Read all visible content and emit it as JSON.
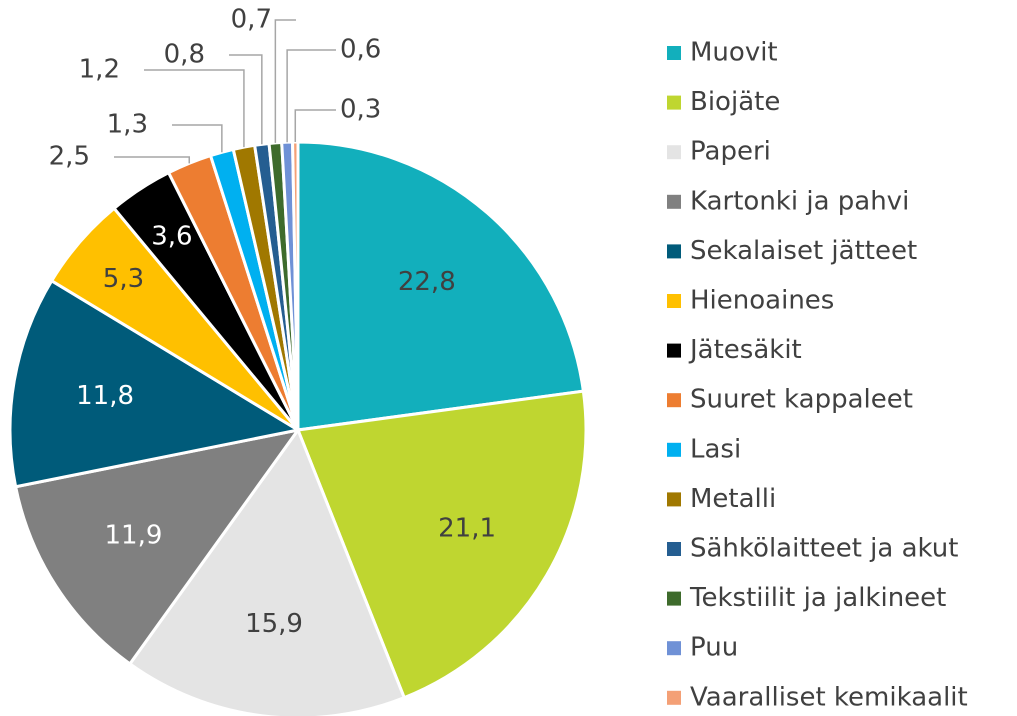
{
  "chart_data": {
    "type": "pie",
    "categories": [
      "Muovit",
      "Biojäte",
      "Paperi",
      "Kartonki ja pahvi",
      "Sekalaiset jätteet",
      "Hienoaines",
      "Jätesäkit",
      "Suuret kappaleet",
      "Lasi",
      "Metalli",
      "Sähkölaitteet ja akut",
      "Tekstiilit ja jalkineet",
      "Puu",
      "Vaaralliset kemikaalit"
    ],
    "values": [
      22.8,
      21.1,
      15.9,
      11.9,
      11.8,
      5.3,
      3.6,
      2.5,
      1.3,
      1.2,
      0.8,
      0.7,
      0.6,
      0.3
    ],
    "value_labels": [
      "22,8",
      "21,1",
      "15,9",
      "11,9",
      "11,8",
      "5,3",
      "3,6",
      "2,5",
      "1,3",
      "1,2",
      "0,8",
      "0,7",
      "0,6",
      "0,3"
    ],
    "colors": [
      "#12afbc",
      "#bfd630",
      "#e4e4e4",
      "#808080",
      "#005b7a",
      "#ffc000",
      "#000000",
      "#ed7d31",
      "#00b0f0",
      "#a07800",
      "#255e91",
      "#3e6b2c",
      "#6f91d6",
      "#f4a076"
    ],
    "legend": "right"
  }
}
